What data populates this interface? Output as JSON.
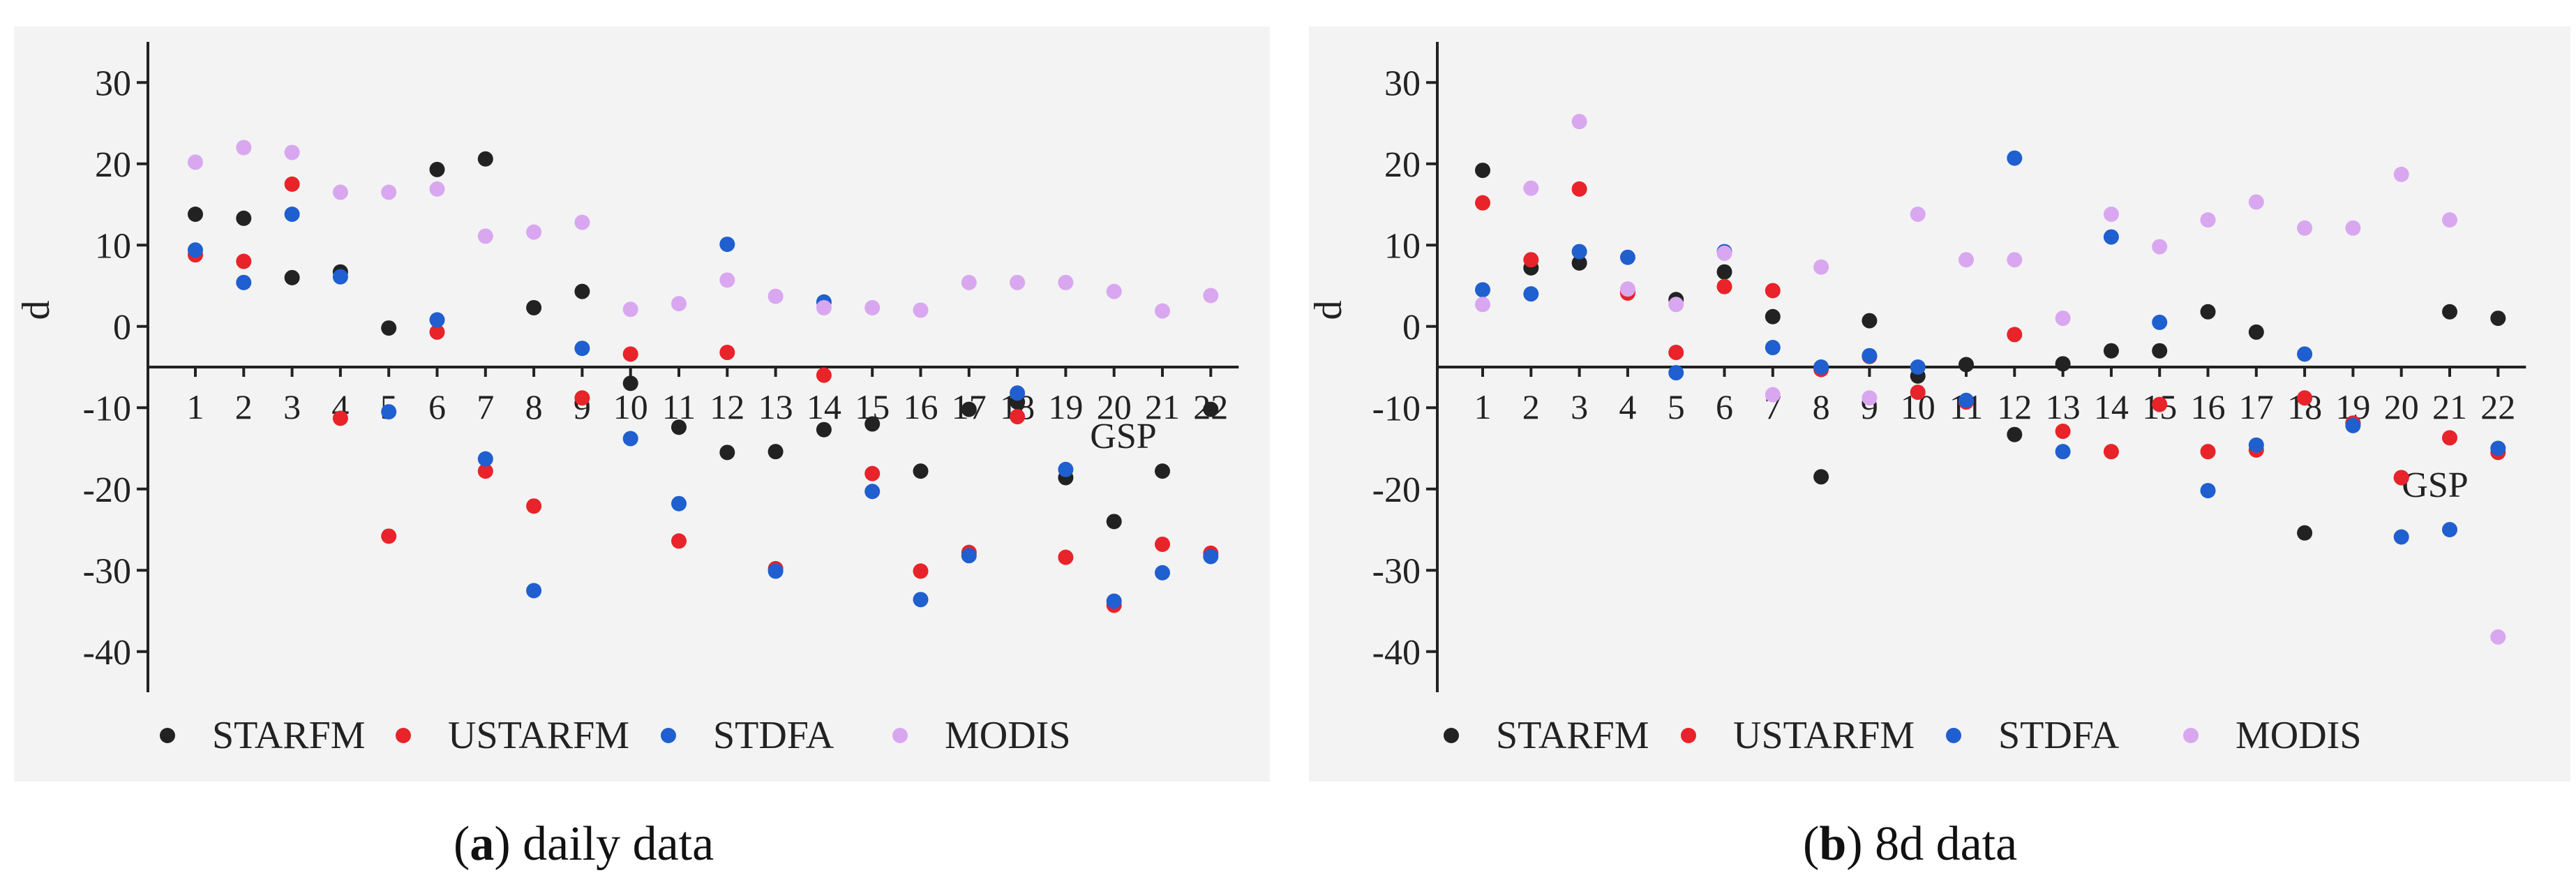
{
  "chart_data": [
    {
      "type": "scatter",
      "panel_label": "a",
      "caption": "daily data",
      "ylabel": "d",
      "xlabel": "GSP",
      "ylim": [
        -45,
        35
      ],
      "yticks": [
        30,
        20,
        10,
        0,
        -10,
        -20,
        -30,
        -40
      ],
      "x_axis_at": -5,
      "categories": [
        1,
        2,
        3,
        4,
        5,
        6,
        7,
        8,
        9,
        10,
        11,
        12,
        13,
        14,
        15,
        16,
        17,
        18,
        19,
        20,
        21,
        22
      ],
      "series": [
        {
          "name": "STARFM",
          "color": "#222222",
          "values": [
            13.8,
            13.3,
            6,
            6.7,
            -0.2,
            19.3,
            20.6,
            2.3,
            4.3,
            -7,
            -12.4,
            -15.5,
            -15.4,
            -12.7,
            -12,
            -17.8,
            -10.2,
            -9.3,
            -18.6,
            -24,
            -17.8,
            -10.2
          ]
        },
        {
          "name": "USTARFM",
          "color": "#e8232a",
          "values": [
            8.8,
            8,
            17.5,
            -11.3,
            -25.8,
            -0.7,
            -17.8,
            -22.1,
            -8.8,
            -3.4,
            -26.4,
            -3.2,
            -29.8,
            -6,
            -18.1,
            -30.1,
            -27.8,
            -11.1,
            -28.4,
            -34.3,
            -26.8,
            -27.9
          ]
        },
        {
          "name": "STDFA",
          "color": "#1f5fcf",
          "values": [
            9.4,
            5.4,
            13.8,
            6.1,
            -10.5,
            0.8,
            -16.3,
            -32.5,
            -2.7,
            -13.8,
            -21.8,
            10.1,
            -30.1,
            3,
            -20.3,
            -33.6,
            -28.2,
            -8.2,
            -17.6,
            -33.8,
            -30.3,
            -28.3
          ]
        },
        {
          "name": "MODIS",
          "color": "#d9a7f0",
          "values": [
            20.2,
            22,
            21.4,
            16.5,
            16.5,
            16.9,
            11.1,
            11.6,
            12.8,
            2.1,
            2.8,
            5.7,
            3.7,
            2.3,
            2.3,
            2,
            5.4,
            5.4,
            5.4,
            4.3,
            1.9,
            3.8
          ]
        }
      ],
      "legend": [
        "STARFM",
        "USTARFM",
        "STDFA",
        "MODIS"
      ],
      "legend_position": "bottom"
    },
    {
      "type": "scatter",
      "panel_label": "b",
      "caption": "8d data",
      "ylabel": "d",
      "xlabel": "GSP",
      "ylim": [
        -45,
        35
      ],
      "yticks": [
        30,
        20,
        10,
        0,
        -10,
        -20,
        -30,
        -40
      ],
      "x_axis_at": -5,
      "categories": [
        1,
        2,
        3,
        4,
        5,
        6,
        7,
        8,
        9,
        10,
        11,
        12,
        13,
        14,
        15,
        16,
        17,
        18,
        19,
        20,
        21,
        22
      ],
      "series": [
        {
          "name": "STARFM",
          "color": "#222222",
          "values": [
            19.2,
            7.2,
            7.8,
            4.3,
            3.3,
            6.7,
            1.2,
            -18.5,
            0.7,
            -6.1,
            -4.7,
            -13.3,
            -4.6,
            -3,
            -3,
            1.8,
            -0.7,
            -25.4,
            -11.9,
            -18.6,
            1.8,
            1
          ]
        },
        {
          "name": "USTARFM",
          "color": "#e8232a",
          "values": [
            15.2,
            8.2,
            16.9,
            4.1,
            -3.2,
            4.9,
            4.4,
            -5.3,
            -3.7,
            -8.1,
            -9.3,
            -1,
            -12.9,
            -15.4,
            -9.6,
            -15.4,
            -15.2,
            -8.8,
            -11.9,
            -18.6,
            -13.7,
            -15.5
          ]
        },
        {
          "name": "STDFA",
          "color": "#1f5fcf",
          "values": [
            4.5,
            4,
            9.2,
            8.5,
            -5.7,
            9.2,
            -2.6,
            -5,
            -3.6,
            -5,
            -9.1,
            20.7,
            -15.4,
            11,
            0.5,
            -20.2,
            -14.6,
            -3.4,
            -12.2,
            -25.9,
            -25,
            -15
          ]
        },
        {
          "name": "MODIS",
          "color": "#d9a7f0",
          "values": [
            2.7,
            17,
            25.2,
            4.6,
            2.7,
            9,
            -8.4,
            7.3,
            -8.8,
            13.8,
            8.2,
            8.2,
            1,
            13.8,
            9.8,
            13.1,
            15.3,
            12.1,
            12.1,
            18.7,
            13.1,
            -38.2
          ]
        }
      ],
      "legend": [
        "STARFM",
        "USTARFM",
        "STDFA",
        "MODIS"
      ],
      "legend_position": "bottom"
    }
  ]
}
